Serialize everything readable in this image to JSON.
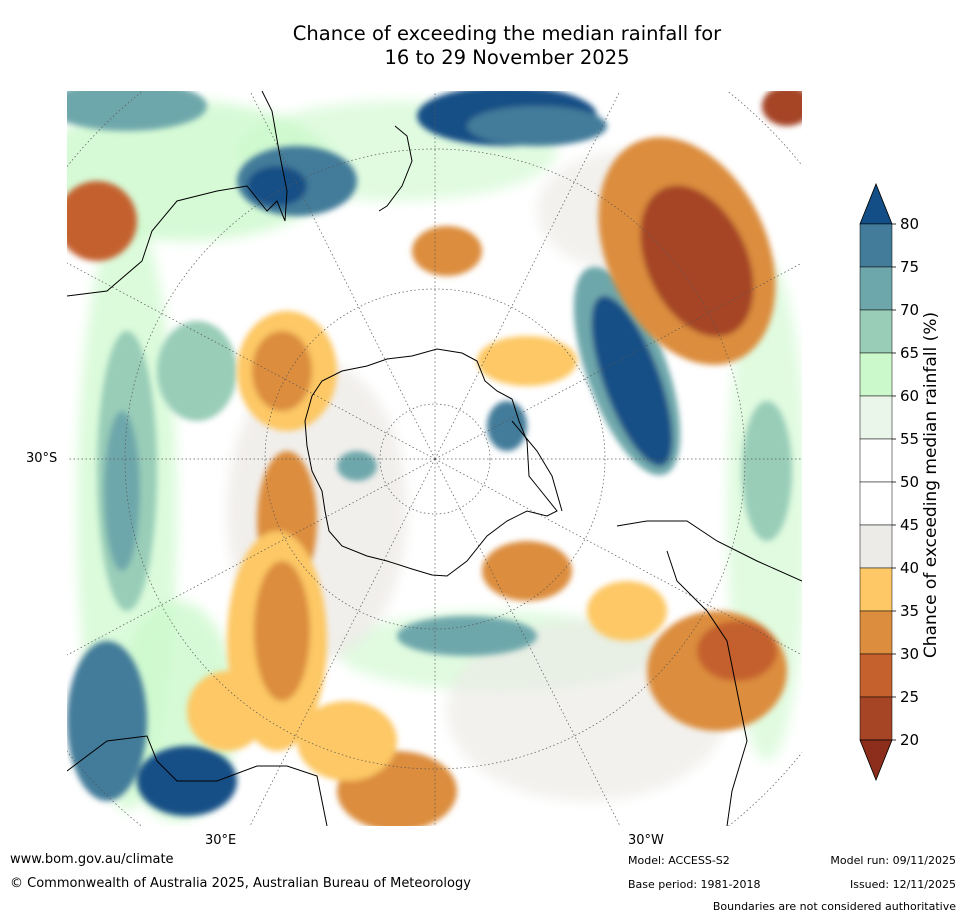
{
  "title_line1": "Chance of exceeding the median rainfall for",
  "title_line2": "16 to 29 November 2025",
  "lat_label": "30°S",
  "lon_labels": [
    "30°E",
    "30°W"
  ],
  "colorbar": {
    "label": "Chance of exceeding median rainfall (%)",
    "ticks": [
      "80",
      "75",
      "70",
      "65",
      "60",
      "55",
      "50",
      "45",
      "40",
      "35",
      "30",
      "25",
      "20"
    ],
    "colors_top_to_bottom": [
      "#134f86",
      "#437c9a",
      "#6ea7ab",
      "#99cdb8",
      "#ccf9cc",
      "#ebf6eb",
      "#ffffff",
      "#ffffff",
      "#edebe7",
      "#fdc865",
      "#dc8d3e",
      "#c4612d",
      "#a54525",
      "#8c2e1b"
    ]
  },
  "footer": {
    "url": "www.bom.gov.au/climate",
    "copyright": "© Commonwealth of Australia 2025, Australian Bureau of Meteorology",
    "model": "Model: ACCESS-S2",
    "base_period": "Base period: 1981-2018",
    "model_run": "Model run: 09/11/2025",
    "issued": "Issued: 12/11/2025",
    "disclaimer": "Boundaries are not considered authoritative"
  }
}
